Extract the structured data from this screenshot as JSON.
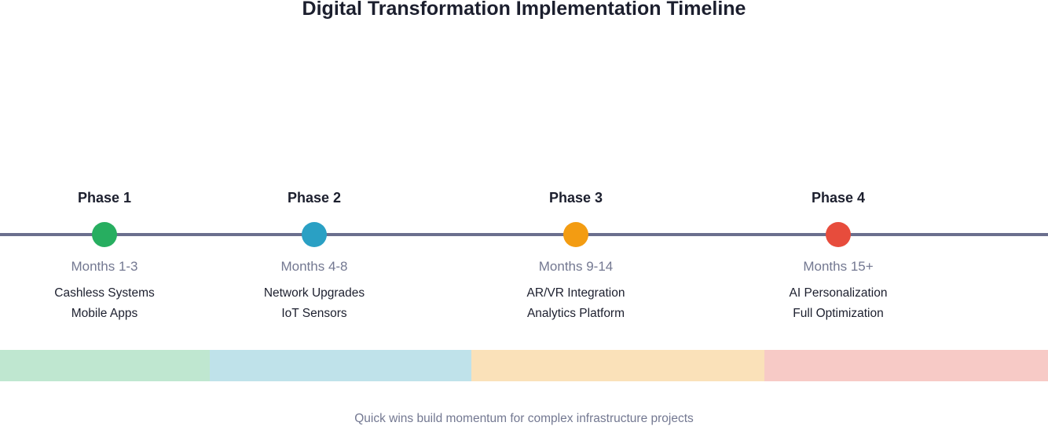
{
  "title": "Digital Transformation Implementation Timeline",
  "phases": [
    {
      "label": "Phase 1",
      "months": "Months 1-3",
      "items": [
        "Cashless Systems",
        "Mobile Apps"
      ],
      "color": "#27ae60",
      "band_color": "#bfe7d0"
    },
    {
      "label": "Phase 2",
      "months": "Months 4-8",
      "items": [
        "Network Upgrades",
        "IoT Sensors"
      ],
      "color": "#2aa0c4",
      "band_color": "#bfe2ea"
    },
    {
      "label": "Phase 3",
      "months": "Months 9-14",
      "items": [
        "AR/VR Integration",
        "Analytics Platform"
      ],
      "color": "#f39c12",
      "band_color": "#fae1b9"
    },
    {
      "label": "Phase 4",
      "months": "Months 15+",
      "items": [
        "AI Personalization",
        "Full Optimization"
      ],
      "color": "#e74c3c",
      "band_color": "#f7cac6"
    }
  ],
  "footer": "Quick wins build momentum for complex infrastructure projects",
  "colors": {
    "axis": "#6b6f8e"
  }
}
